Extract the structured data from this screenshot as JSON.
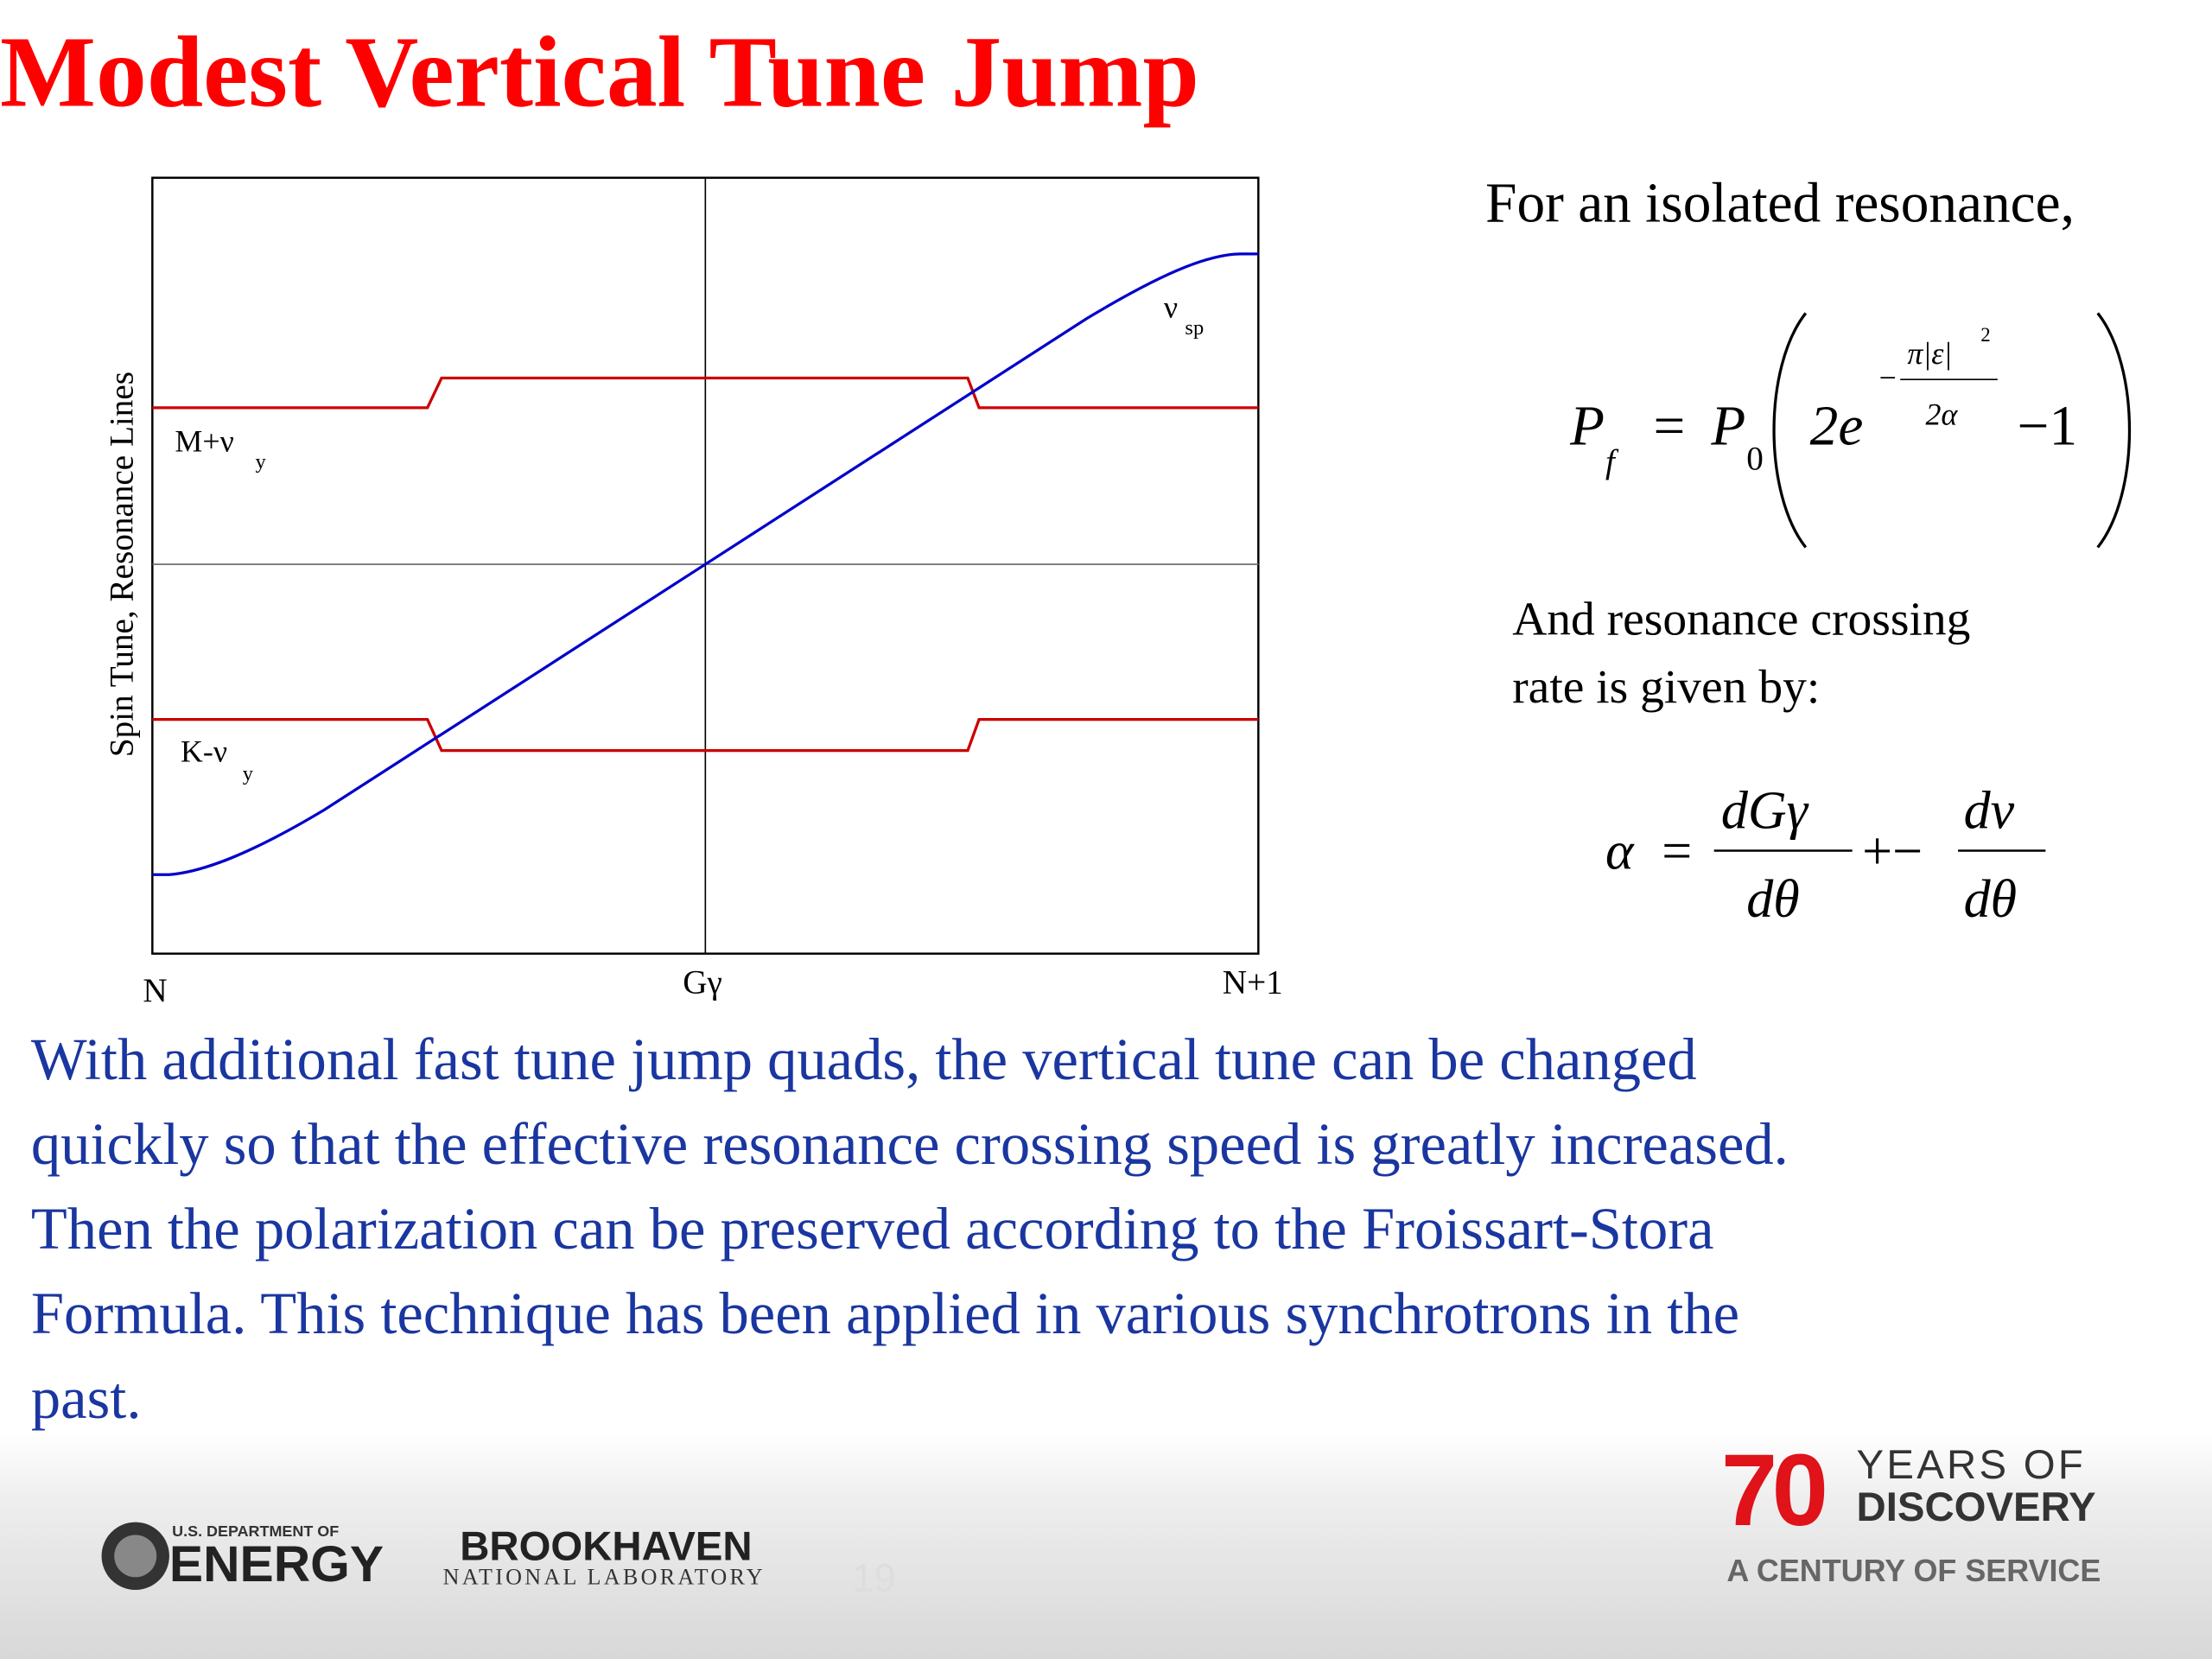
{
  "title": "Modest Vertical Tune Jump",
  "figure": {
    "y_axis_label": "Spin Tune, Resonance Lines",
    "x_labels": [
      "N",
      "Gγ",
      "N+1"
    ],
    "line_labels": [
      {
        "text": "M+ν",
        "sub": "y"
      },
      {
        "text": "K-ν",
        "sub": "y"
      },
      {
        "text": "ν",
        "sub": "sp"
      }
    ]
  },
  "intro": "For an isolated resonance,",
  "formula_1": {
    "lhs": "P",
    "lhs_sub": "f",
    "eq": "=",
    "p": "P",
    "p_sub": "0",
    "base": "2e",
    "exp_sign": "−",
    "exp_num": "π|ε|",
    "exp_pow": "2",
    "exp_den": "2α",
    "tail": "−1"
  },
  "rate_text": [
    "And resonance crossing",
    "rate is given by:"
  ],
  "formula_2": {
    "lhs": "α",
    "eq": "=",
    "num_1": "dGγ",
    "den_1": "dθ",
    "op": "+−",
    "num_2": "dν",
    "den_2": "dθ"
  },
  "body": [
    "With additional fast tune jump quads, the vertical tune can be changed",
    "quickly so that the effective resonance crossing speed is greatly increased.",
    "Then the polarization can be preserved according to the Froissart-Stora",
    "Formula.  This technique has been applied in various synchrotrons in the",
    "past."
  ],
  "footer": {
    "doe_top": "U.S. DEPARTMENT OF",
    "doe_name": "ENERGY",
    "bnl_name": "BROOKHAVEN",
    "bnl_sub": "NATIONAL LABORATORY",
    "page": "19",
    "anniv_num": "70",
    "anniv_line_1": "YEARS OF",
    "anniv_line_2": "DISCOVERY",
    "anniv_tag": "A CENTURY OF SERVICE"
  }
}
